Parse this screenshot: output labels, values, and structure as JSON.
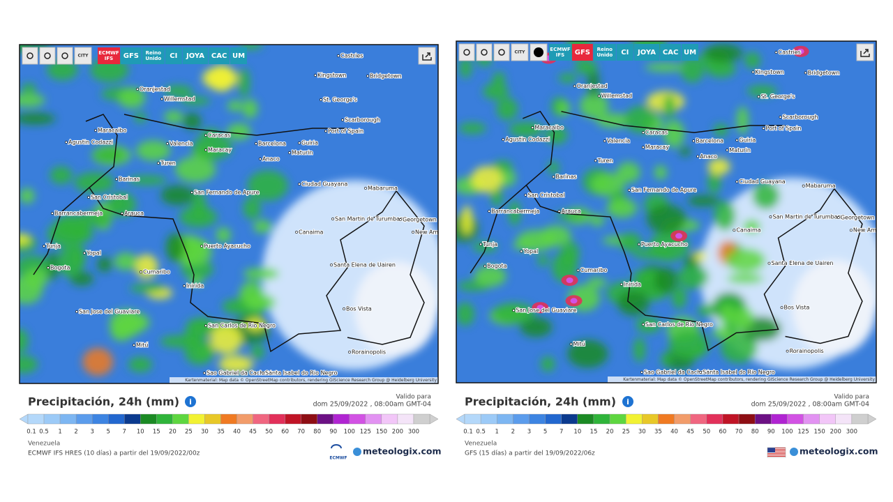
{
  "colorbar": {
    "labels": [
      "0.1",
      "0.5",
      "1",
      "2",
      "3",
      "5",
      "7",
      "10",
      "15",
      "20",
      "25",
      "30",
      "35",
      "40",
      "45",
      "50",
      "60",
      "70",
      "80",
      "90",
      "100",
      "125",
      "150",
      "200",
      "300"
    ],
    "colors": [
      "#b4d8fa",
      "#9ccaf7",
      "#7db6f2",
      "#5b9cec",
      "#3d84e2",
      "#2267cf",
      "#0b3a8e",
      "#1b8a24",
      "#2fb43a",
      "#5ed640",
      "#f2f233",
      "#e8c828",
      "#f07a22",
      "#f29c6a",
      "#f06680",
      "#e2305a",
      "#c01426",
      "#8e0e14",
      "#6c1184",
      "#b024d2",
      "#d252e4",
      "#e292f2",
      "#f2c6f8",
      "#f4e4f8",
      "#cfcfcf"
    ]
  },
  "panels": [
    {
      "toolbar": {
        "city": "CITY",
        "models": [
          {
            "label": "ECMWF IFS",
            "color": "#e8283c"
          },
          {
            "label": "GFS",
            "color": "#1f9bb5"
          },
          {
            "label": "Reino Unido",
            "color": "#1f9bb5"
          },
          {
            "label": "CI",
            "color": "#1f9bb5"
          },
          {
            "label": "JOYA",
            "color": "#1f9bb5"
          },
          {
            "label": "CAC",
            "color": "#1f9bb5"
          },
          {
            "label": "UM",
            "color": "#1f9bb5"
          }
        ]
      },
      "attribution": "Kartenmaterial: Map data © OpenStreetMap contributors, rendering GIScience Research Group @ Heidelberg University",
      "map_labels": [
        "Castries",
        "Kingstown",
        "Bridgetown",
        "Oranjestad",
        "Willemstad",
        "St. George's",
        "Scarborough",
        "Maracaibo",
        "Port of Spain",
        "Caracas",
        "Valencia",
        "Barcelona",
        "Maracay",
        "Guiria",
        "Maturin",
        "Agustin Codazzi",
        "Anaco",
        "Turen",
        "Barinas",
        "Ciudad Guayana",
        "Mabaruma",
        "San Fernando de Apure",
        "San Cristobal",
        "Arauca",
        "Barrancabermeja",
        "San Martin de Turumbang",
        "Georgetown",
        "New Amsterdam",
        "Canaima",
        "Tunja",
        "Yopal",
        "Puerto Ayacucho",
        "Bogota",
        "Cumaribo",
        "Santa Elena de Uairen",
        "Inirida",
        "Bos Vista",
        "San Jose del Guaviare",
        "San Carlos de Rio Negro",
        "Mitú",
        "Rorainopolis",
        "Sao Gabriel da Cachoeira",
        "Santa Isabel do Rio Negro"
      ],
      "title": "Precipitación, 24h (mm)",
      "valid_label": "Valido para",
      "valid_time": "dom 25/09/2022 , 08:00am GMT-04",
      "region": "Venezuela",
      "model_run": "ECMWF IFS HRES (10 días) a partir del 19/09/2022/00z",
      "model_logo": "ECMWF",
      "brand": "meteologix.com"
    },
    {
      "toolbar": {
        "city": "CITY",
        "models": [
          {
            "label": "ECMWF IFS",
            "color": "#1f9bb5"
          },
          {
            "label": "GFS",
            "color": "#e8283c"
          },
          {
            "label": "Reino Unido",
            "color": "#1f9bb5"
          },
          {
            "label": "CI",
            "color": "#1f9bb5"
          },
          {
            "label": "JOYA",
            "color": "#1f9bb5"
          },
          {
            "label": "CAC",
            "color": "#1f9bb5"
          },
          {
            "label": "UM",
            "color": "#1f9bb5"
          }
        ]
      },
      "attribution": "Kartenmaterial: Map data © OpenStreetMap contributors, rendering GIScience Research Group @ Heidelberg University",
      "map_labels": [
        "Castries",
        "Kingstown",
        "Bridgetown",
        "Oranjestad",
        "Willemstad",
        "St. George's",
        "Scarborough",
        "Maracaibo",
        "Port of Spain",
        "Caracas",
        "Valencia",
        "Barcelona",
        "Maracay",
        "Guiria",
        "Maturin",
        "Agustin Codazzi",
        "Anaco",
        "Turen",
        "Barinas",
        "Ciudad Guayana",
        "Mabaruma",
        "San Fernando de Apure",
        "San Cristobal",
        "Arauca",
        "Barrancabermeja",
        "San Martin de Turumbang",
        "Georgetown",
        "New Amsterdam",
        "Canaima",
        "Tunja",
        "Yopal",
        "Puerto Ayacucho",
        "Bogota",
        "Cumaribo",
        "Santa Elena de Uairen",
        "Inirida",
        "Bos Vista",
        "San Jose del Guaviare",
        "San Carlos de Rio Negro",
        "Mitú",
        "Rorainopolis",
        "Sao Gabriel da Cachoeira",
        "Santa Isabel do Rio Negro"
      ],
      "title": "Precipitación, 24h (mm)",
      "valid_label": "Valido para",
      "valid_time": "dom 25/09/2022 , 08:00am GMT-04",
      "region": "Venezuela",
      "model_run": "GFS (15 días) a partir del 19/09/2022/06z",
      "brand": "meteologix.com"
    }
  ]
}
